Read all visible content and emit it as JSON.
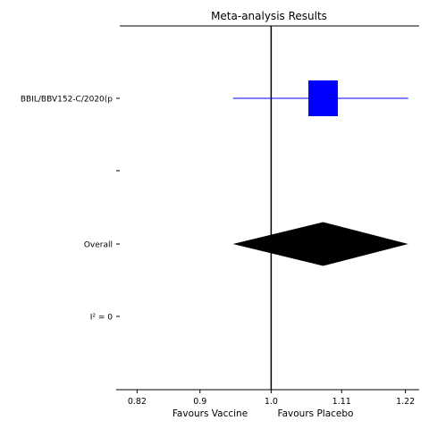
{
  "chart_data": {
    "type": "forest",
    "title": "Meta-analysis Results",
    "x_scale": "log",
    "xlim": [
      0.795,
      1.245
    ],
    "x_ticks": [
      0.82,
      0.9,
      1.0,
      1.11,
      1.22
    ],
    "x_tick_labels": [
      "0.82",
      "0.9",
      "1.0",
      "1.11",
      "1.22"
    ],
    "null_line": 1.0,
    "xlabel_left": "Favours Vaccine",
    "xlabel_right": "Favours Placebo",
    "rows": [
      {
        "label": "BBIL/BBV152-C/2020(p",
        "kind": "study",
        "estimate": 1.08,
        "ci": [
          0.945,
          1.225
        ],
        "color": "#0000ff"
      },
      {
        "label": "",
        "kind": "spacer"
      },
      {
        "label": "Overall",
        "kind": "summary",
        "estimate": 1.08,
        "ci": [
          0.945,
          1.225
        ],
        "color": "#000000"
      },
      {
        "label": "I² = 0",
        "kind": "stat"
      }
    ]
  }
}
